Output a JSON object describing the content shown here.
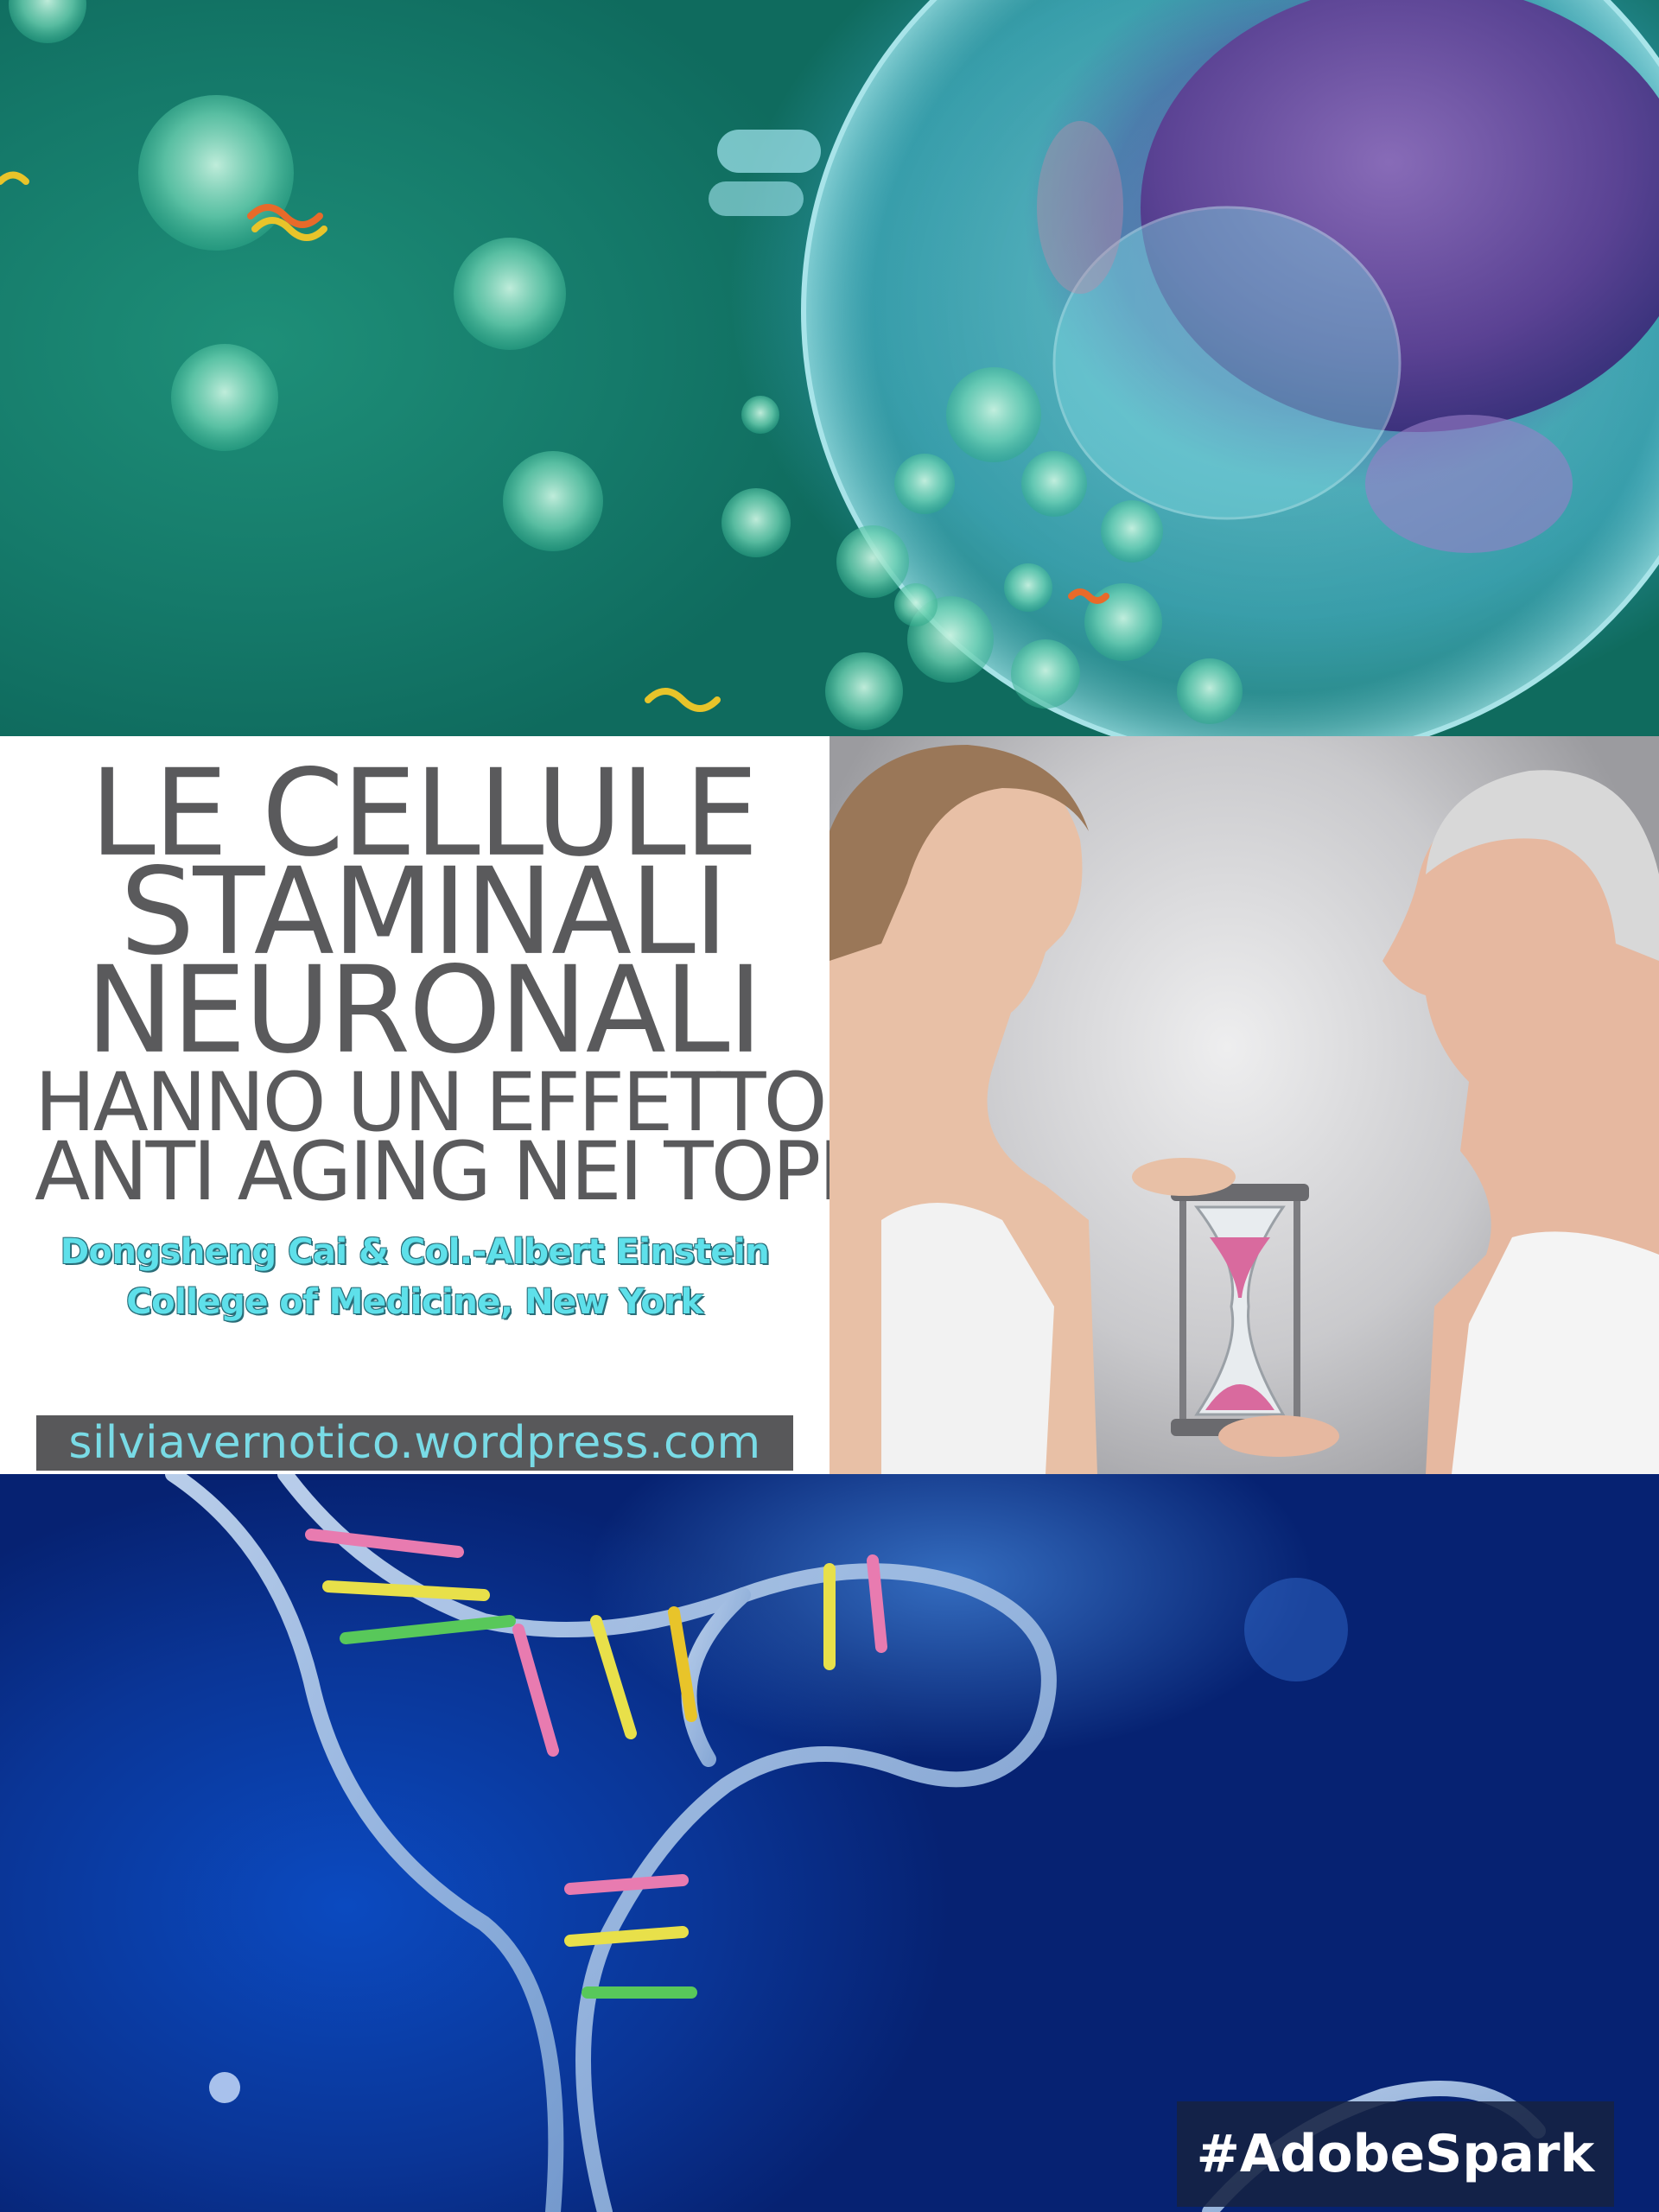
{
  "headline": {
    "line1": "LE CELLULE",
    "line2": "STAMINALI",
    "line3": "NEURONALI",
    "line4": "HANNO UN EFFETTO",
    "line5": "ANTI AGING NEI TOPI"
  },
  "credit": {
    "line1": "Dongsheng Cai & Col.-Albert Einstein",
    "line2": "College of Medicine, New York"
  },
  "website": "silviavernotico.wordpress.com",
  "badge": "#AdobeSpark",
  "colors": {
    "headline_text": "#5a5a5c",
    "credit_text": "#5ee0ea",
    "url_box_bg": "#58585a",
    "url_text": "#79dbe6",
    "badge_bg": "#162242"
  }
}
